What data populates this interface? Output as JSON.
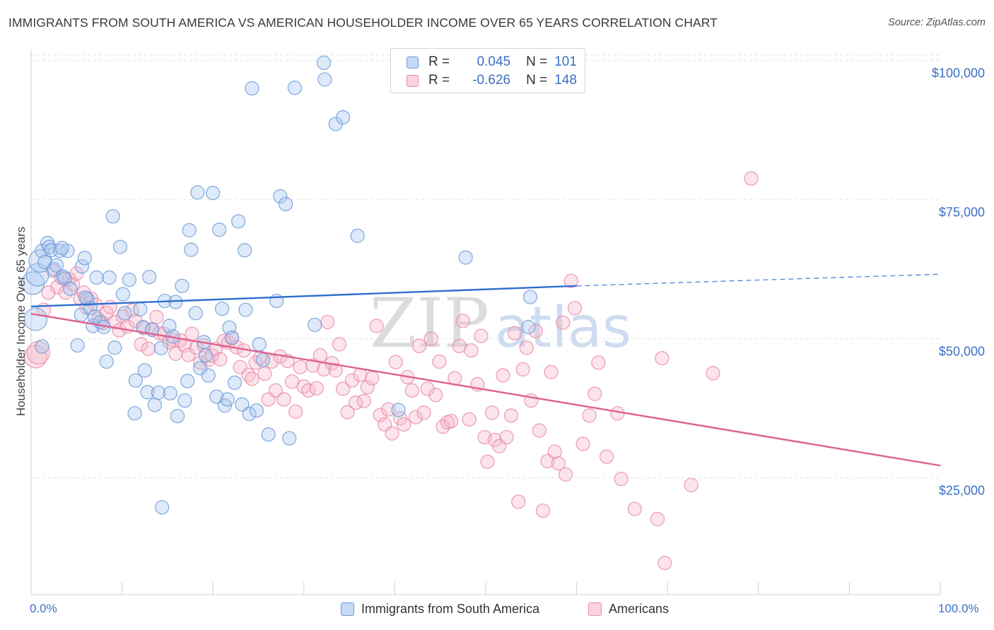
{
  "title": "IMMIGRANTS FROM SOUTH AMERICA VS AMERICAN HOUSEHOLDER INCOME OVER 65 YEARS CORRELATION CHART",
  "source": "Source: ZipAtlas.com",
  "watermark": {
    "zip": "ZIP",
    "atlas": "atlas"
  },
  "stats": {
    "r_label": "R =",
    "n_label": "N =",
    "series1": {
      "r": "0.045",
      "n": "101"
    },
    "series2": {
      "r": "-0.626",
      "n": "148"
    }
  },
  "colors": {
    "blue_fill": "#a9c6ee",
    "blue_stroke": "#6a9ad6",
    "blue_line": "#2e6fce",
    "pink_fill": "#f5b8cb",
    "pink_stroke": "#e98aa8",
    "pink_line": "#e0608e",
    "tick_text": "#3d6fc4",
    "grid": "#e3e3e3"
  },
  "chart_data": {
    "type": "scatter",
    "title": "IMMIGRANTS FROM SOUTH AMERICA VS AMERICAN HOUSEHOLDER INCOME OVER 65 YEARS CORRELATION CHART",
    "xlabel": "",
    "ylabel": "Householder Income Over 65 years",
    "xlim": [
      0,
      100
    ],
    "ylim": [
      4000,
      102000
    ],
    "x_tick_labels": [
      "0.0%",
      "100.0%"
    ],
    "y_ticks": [
      25000,
      50000,
      75000,
      100000
    ],
    "y_tick_labels": [
      "$25,000",
      "$50,000",
      "$75,000",
      "$100,000"
    ],
    "grid": true,
    "legend_position": "bottom-center",
    "series": [
      {
        "name": "Immigrants from South America",
        "color": "#a9c6ee",
        "trend": {
          "x": [
            0,
            60
          ],
          "y": [
            55800,
            59500
          ],
          "dashed_to": [
            100,
            61600
          ]
        },
        "points": [
          [
            0.2,
            60000
          ],
          [
            0.5,
            53500
          ],
          [
            0.7,
            61500
          ],
          [
            1.0,
            64000
          ],
          [
            1.2,
            65800
          ],
          [
            1.5,
            63800
          ],
          [
            1.8,
            67200
          ],
          [
            2.0,
            66500
          ],
          [
            2.2,
            65900
          ],
          [
            2.5,
            62500
          ],
          [
            2.8,
            63200
          ],
          [
            3.2,
            65800
          ],
          [
            3.5,
            61200
          ],
          [
            3.7,
            60800
          ],
          [
            4.0,
            65800
          ],
          [
            4.3,
            59000
          ],
          [
            5.1,
            48800
          ],
          [
            5.5,
            54300
          ],
          [
            5.6,
            63000
          ],
          [
            5.9,
            64500
          ],
          [
            6.2,
            57100
          ],
          [
            6.5,
            55500
          ],
          [
            6.8,
            52300
          ],
          [
            7.0,
            54000
          ],
          [
            7.2,
            61000
          ],
          [
            7.6,
            53000
          ],
          [
            8.0,
            52100
          ],
          [
            8.6,
            61000
          ],
          [
            9.2,
            48400
          ],
          [
            9.0,
            72000
          ],
          [
            9.8,
            66500
          ],
          [
            10.1,
            58000
          ],
          [
            10.3,
            54600
          ],
          [
            10.8,
            60600
          ],
          [
            11.4,
            36600
          ],
          [
            11.5,
            42500
          ],
          [
            12.0,
            55300
          ],
          [
            12.3,
            52100
          ],
          [
            12.8,
            40400
          ],
          [
            13.0,
            61100
          ],
          [
            13.3,
            51600
          ],
          [
            13.6,
            38100
          ],
          [
            14.0,
            40300
          ],
          [
            14.3,
            48300
          ],
          [
            14.4,
            19700
          ],
          [
            14.7,
            56800
          ],
          [
            15.2,
            52300
          ],
          [
            15.3,
            40200
          ],
          [
            15.6,
            50400
          ],
          [
            15.9,
            56600
          ],
          [
            16.1,
            36100
          ],
          [
            16.6,
            59500
          ],
          [
            16.9,
            38900
          ],
          [
            17.2,
            42400
          ],
          [
            17.4,
            69500
          ],
          [
            17.6,
            66000
          ],
          [
            18.1,
            54600
          ],
          [
            18.3,
            76300
          ],
          [
            18.6,
            44700
          ],
          [
            19.0,
            49400
          ],
          [
            19.2,
            47000
          ],
          [
            19.5,
            43400
          ],
          [
            20.0,
            76200
          ],
          [
            20.4,
            39600
          ],
          [
            20.7,
            69600
          ],
          [
            21.0,
            55400
          ],
          [
            21.3,
            38000
          ],
          [
            21.6,
            39100
          ],
          [
            21.8,
            52000
          ],
          [
            22.1,
            50200
          ],
          [
            22.4,
            42100
          ],
          [
            22.8,
            71100
          ],
          [
            23.2,
            38200
          ],
          [
            23.6,
            55200
          ],
          [
            23.5,
            65900
          ],
          [
            24.0,
            36500
          ],
          [
            24.3,
            95000
          ],
          [
            24.8,
            37100
          ],
          [
            25.1,
            49000
          ],
          [
            25.5,
            46200
          ],
          [
            26.1,
            32800
          ],
          [
            27.0,
            56800
          ],
          [
            27.4,
            75600
          ],
          [
            28.0,
            74200
          ],
          [
            28.4,
            32100
          ],
          [
            29.0,
            95100
          ],
          [
            31.2,
            52500
          ],
          [
            32.2,
            99600
          ],
          [
            32.3,
            96600
          ],
          [
            33.5,
            88600
          ],
          [
            34.3,
            89800
          ],
          [
            35.9,
            68500
          ],
          [
            40.4,
            37200
          ],
          [
            47.8,
            64600
          ],
          [
            54.7,
            52100
          ],
          [
            54.9,
            57500
          ],
          [
            1.2,
            48600
          ],
          [
            3.4,
            66300
          ],
          [
            6.0,
            57400
          ],
          [
            8.3,
            45900
          ],
          [
            12.5,
            44300
          ]
        ]
      },
      {
        "name": "Americans",
        "color": "#f5b8cb",
        "trend": {
          "x": [
            0,
            100
          ],
          "y": [
            54500,
            27200
          ]
        },
        "points": [
          [
            0.5,
            46800
          ],
          [
            0.8,
            47500
          ],
          [
            1.4,
            55200
          ],
          [
            1.9,
            58300
          ],
          [
            2.4,
            62200
          ],
          [
            2.9,
            59300
          ],
          [
            3.3,
            61000
          ],
          [
            3.8,
            58300
          ],
          [
            4.2,
            60700
          ],
          [
            4.6,
            59800
          ],
          [
            5.0,
            61700
          ],
          [
            5.4,
            57200
          ],
          [
            5.8,
            58300
          ],
          [
            6.1,
            55600
          ],
          [
            6.6,
            57200
          ],
          [
            7.1,
            56100
          ],
          [
            7.4,
            53500
          ],
          [
            7.9,
            52800
          ],
          [
            8.3,
            54600
          ],
          [
            8.7,
            55700
          ],
          [
            9.2,
            53000
          ],
          [
            9.7,
            51500
          ],
          [
            10.1,
            54000
          ],
          [
            10.6,
            52200
          ],
          [
            11.1,
            55100
          ],
          [
            11.5,
            53200
          ],
          [
            12.1,
            49000
          ],
          [
            12.4,
            51900
          ],
          [
            12.9,
            48200
          ],
          [
            13.3,
            51700
          ],
          [
            13.8,
            53900
          ],
          [
            14.1,
            51000
          ],
          [
            14.6,
            50900
          ],
          [
            15.2,
            49400
          ],
          [
            15.6,
            49800
          ],
          [
            15.9,
            47300
          ],
          [
            16.4,
            49700
          ],
          [
            16.9,
            48800
          ],
          [
            17.3,
            47100
          ],
          [
            17.7,
            50900
          ],
          [
            18.2,
            48400
          ],
          [
            18.6,
            45700
          ],
          [
            19.0,
            48800
          ],
          [
            19.5,
            46200
          ],
          [
            19.9,
            47000
          ],
          [
            20.3,
            48200
          ],
          [
            20.8,
            46300
          ],
          [
            21.2,
            49600
          ],
          [
            21.7,
            49300
          ],
          [
            22.1,
            50100
          ],
          [
            22.6,
            48500
          ],
          [
            23.0,
            44900
          ],
          [
            23.4,
            47900
          ],
          [
            23.9,
            43500
          ],
          [
            24.3,
            42800
          ],
          [
            24.7,
            45700
          ],
          [
            25.2,
            46600
          ],
          [
            25.7,
            43700
          ],
          [
            26.1,
            39100
          ],
          [
            26.5,
            45900
          ],
          [
            26.9,
            40700
          ],
          [
            27.4,
            46800
          ],
          [
            27.8,
            39100
          ],
          [
            28.2,
            46000
          ],
          [
            28.7,
            42300
          ],
          [
            29.1,
            36900
          ],
          [
            29.6,
            44900
          ],
          [
            30.0,
            41400
          ],
          [
            30.5,
            40700
          ],
          [
            31.0,
            45200
          ],
          [
            31.4,
            41100
          ],
          [
            31.8,
            47000
          ],
          [
            32.2,
            44500
          ],
          [
            32.6,
            53000
          ],
          [
            33.1,
            45600
          ],
          [
            33.5,
            44300
          ],
          [
            33.9,
            49000
          ],
          [
            34.3,
            41000
          ],
          [
            34.8,
            36800
          ],
          [
            35.3,
            42500
          ],
          [
            35.7,
            38500
          ],
          [
            36.2,
            43500
          ],
          [
            36.6,
            38800
          ],
          [
            37.0,
            41300
          ],
          [
            37.5,
            42900
          ],
          [
            38.0,
            52300
          ],
          [
            38.4,
            36300
          ],
          [
            38.9,
            34600
          ],
          [
            39.3,
            37300
          ],
          [
            39.7,
            33000
          ],
          [
            40.1,
            45800
          ],
          [
            40.6,
            35700
          ],
          [
            41.0,
            34600
          ],
          [
            41.4,
            43100
          ],
          [
            41.9,
            40700
          ],
          [
            42.3,
            35900
          ],
          [
            42.7,
            48700
          ],
          [
            43.2,
            36700
          ],
          [
            43.6,
            41000
          ],
          [
            44.0,
            50000
          ],
          [
            44.5,
            39900
          ],
          [
            44.9,
            45900
          ],
          [
            45.3,
            34200
          ],
          [
            45.8,
            35000
          ],
          [
            46.2,
            35200
          ],
          [
            46.6,
            42900
          ],
          [
            47.1,
            48700
          ],
          [
            47.5,
            53200
          ],
          [
            48.2,
            35500
          ],
          [
            48.4,
            47900
          ],
          [
            49.1,
            41800
          ],
          [
            49.5,
            50500
          ],
          [
            49.9,
            32300
          ],
          [
            50.2,
            27900
          ],
          [
            50.7,
            36700
          ],
          [
            51.0,
            31800
          ],
          [
            51.5,
            30700
          ],
          [
            51.9,
            43400
          ],
          [
            52.3,
            32300
          ],
          [
            52.8,
            36200
          ],
          [
            53.2,
            51000
          ],
          [
            53.6,
            20700
          ],
          [
            54.1,
            44500
          ],
          [
            54.5,
            48400
          ],
          [
            55.0,
            38900
          ],
          [
            55.5,
            51400
          ],
          [
            55.9,
            33500
          ],
          [
            56.3,
            19100
          ],
          [
            56.8,
            28000
          ],
          [
            57.2,
            44000
          ],
          [
            57.6,
            29700
          ],
          [
            58.0,
            27600
          ],
          [
            58.5,
            52900
          ],
          [
            58.8,
            25600
          ],
          [
            59.4,
            60400
          ],
          [
            59.8,
            55500
          ],
          [
            60.7,
            31100
          ],
          [
            61.4,
            36200
          ],
          [
            62.0,
            40100
          ],
          [
            62.4,
            45700
          ],
          [
            63.3,
            28800
          ],
          [
            64.5,
            36600
          ],
          [
            64.9,
            24800
          ],
          [
            66.4,
            19400
          ],
          [
            68.9,
            17600
          ],
          [
            69.4,
            46500
          ],
          [
            69.7,
            9700
          ],
          [
            72.6,
            23700
          ],
          [
            79.2,
            78800
          ],
          [
            75.0,
            43800
          ]
        ]
      }
    ]
  },
  "legend": {
    "series1": "Immigrants from South America",
    "series2": "Americans"
  }
}
